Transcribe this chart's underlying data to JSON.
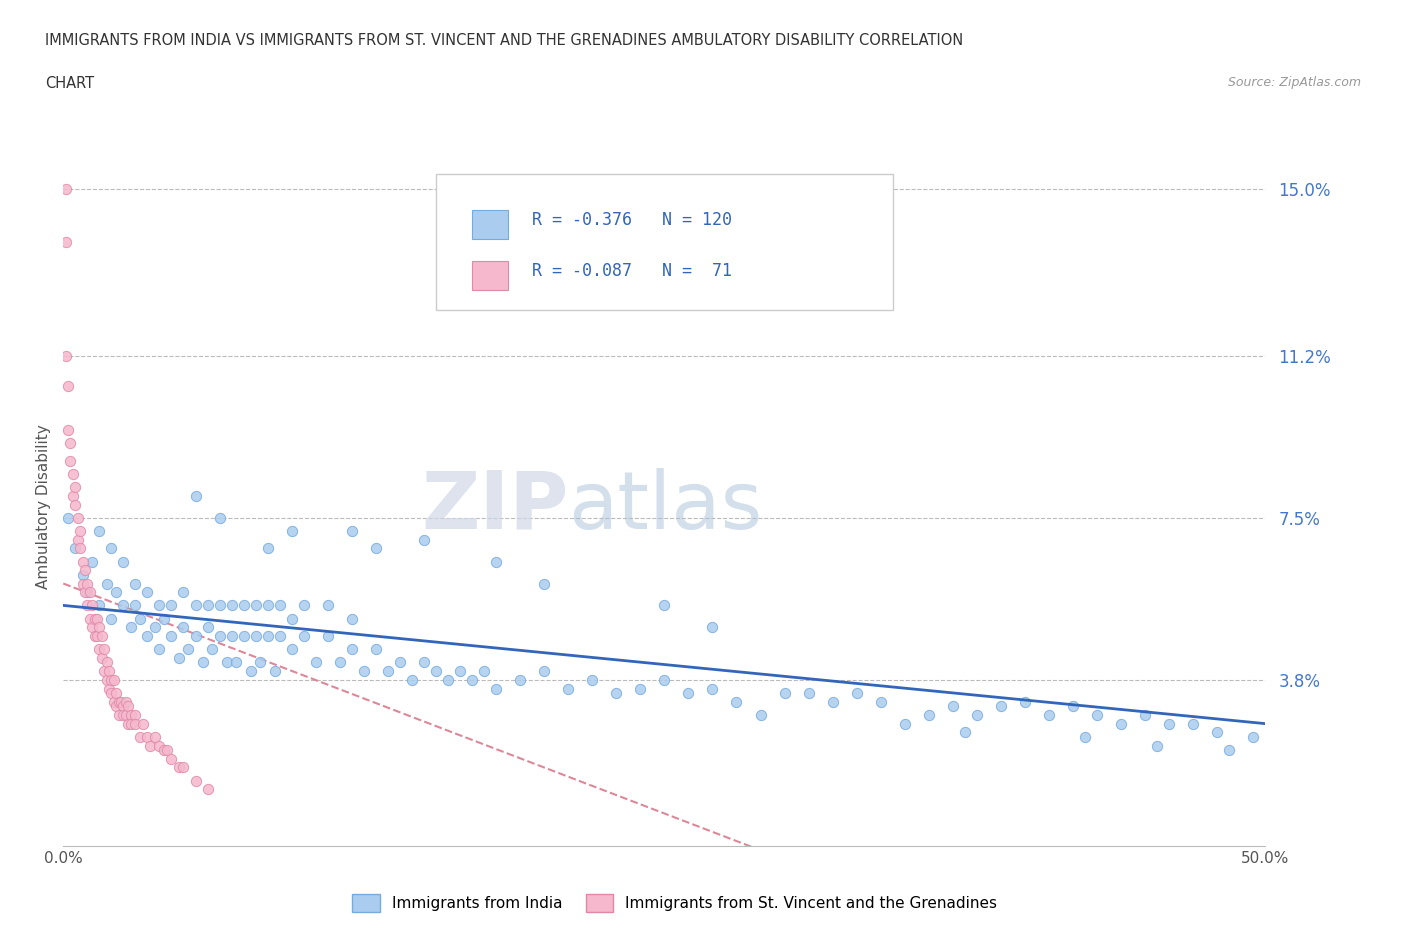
{
  "title_line1": "IMMIGRANTS FROM INDIA VS IMMIGRANTS FROM ST. VINCENT AND THE GRENADINES AMBULATORY DISABILITY CORRELATION",
  "title_line2": "CHART",
  "source": "Source: ZipAtlas.com",
  "ylabel": "Ambulatory Disability",
  "xlim": [
    0.0,
    0.5
  ],
  "ylim": [
    0.0,
    0.155
  ],
  "ytick_labels": [
    "15.0%",
    "11.2%",
    "7.5%",
    "3.8%"
  ],
  "ytick_values": [
    0.15,
    0.112,
    0.075,
    0.038
  ],
  "grid_color": "#bbbbbb",
  "background_color": "#ffffff",
  "india_color": "#aaccee",
  "india_edge_color": "#77aadd",
  "svg_color": "#f5b8cc",
  "svg_edge_color": "#e088a8",
  "india_line_color": "#3366bb",
  "svg_line_color": "#dd8899",
  "legend_label_india": "Immigrants from India",
  "legend_label_svg": "Immigrants from St. Vincent and the Grenadines",
  "watermark_zip": "ZIP",
  "watermark_atlas": "atlas",
  "india_scatter_x": [
    0.002,
    0.005,
    0.008,
    0.01,
    0.012,
    0.015,
    0.015,
    0.018,
    0.02,
    0.02,
    0.022,
    0.025,
    0.025,
    0.028,
    0.03,
    0.03,
    0.032,
    0.035,
    0.035,
    0.038,
    0.04,
    0.04,
    0.042,
    0.045,
    0.045,
    0.048,
    0.05,
    0.05,
    0.052,
    0.055,
    0.055,
    0.058,
    0.06,
    0.06,
    0.062,
    0.065,
    0.065,
    0.068,
    0.07,
    0.07,
    0.072,
    0.075,
    0.075,
    0.078,
    0.08,
    0.08,
    0.082,
    0.085,
    0.085,
    0.088,
    0.09,
    0.09,
    0.095,
    0.095,
    0.1,
    0.1,
    0.105,
    0.11,
    0.11,
    0.115,
    0.12,
    0.12,
    0.125,
    0.13,
    0.135,
    0.14,
    0.145,
    0.15,
    0.155,
    0.16,
    0.165,
    0.17,
    0.175,
    0.18,
    0.19,
    0.2,
    0.21,
    0.22,
    0.23,
    0.24,
    0.25,
    0.26,
    0.27,
    0.28,
    0.3,
    0.31,
    0.32,
    0.33,
    0.34,
    0.36,
    0.37,
    0.38,
    0.39,
    0.4,
    0.41,
    0.42,
    0.43,
    0.44,
    0.45,
    0.46,
    0.47,
    0.48,
    0.495,
    0.35,
    0.375,
    0.425,
    0.455,
    0.485,
    0.29,
    0.18,
    0.2,
    0.15,
    0.25,
    0.27,
    0.13,
    0.12,
    0.095,
    0.085,
    0.065,
    0.055
  ],
  "india_scatter_y": [
    0.075,
    0.068,
    0.062,
    0.058,
    0.065,
    0.055,
    0.072,
    0.06,
    0.052,
    0.068,
    0.058,
    0.055,
    0.065,
    0.05,
    0.06,
    0.055,
    0.052,
    0.048,
    0.058,
    0.05,
    0.055,
    0.045,
    0.052,
    0.048,
    0.055,
    0.043,
    0.05,
    0.058,
    0.045,
    0.048,
    0.055,
    0.042,
    0.05,
    0.055,
    0.045,
    0.048,
    0.055,
    0.042,
    0.048,
    0.055,
    0.042,
    0.048,
    0.055,
    0.04,
    0.048,
    0.055,
    0.042,
    0.048,
    0.055,
    0.04,
    0.048,
    0.055,
    0.045,
    0.052,
    0.048,
    0.055,
    0.042,
    0.048,
    0.055,
    0.042,
    0.045,
    0.052,
    0.04,
    0.045,
    0.04,
    0.042,
    0.038,
    0.042,
    0.04,
    0.038,
    0.04,
    0.038,
    0.04,
    0.036,
    0.038,
    0.04,
    0.036,
    0.038,
    0.035,
    0.036,
    0.038,
    0.035,
    0.036,
    0.033,
    0.035,
    0.035,
    0.033,
    0.035,
    0.033,
    0.03,
    0.032,
    0.03,
    0.032,
    0.033,
    0.03,
    0.032,
    0.03,
    0.028,
    0.03,
    0.028,
    0.028,
    0.026,
    0.025,
    0.028,
    0.026,
    0.025,
    0.023,
    0.022,
    0.03,
    0.065,
    0.06,
    0.07,
    0.055,
    0.05,
    0.068,
    0.072,
    0.072,
    0.068,
    0.075,
    0.08
  ],
  "svg_scatter_x": [
    0.001,
    0.001,
    0.002,
    0.002,
    0.003,
    0.003,
    0.004,
    0.004,
    0.005,
    0.005,
    0.006,
    0.006,
    0.007,
    0.007,
    0.008,
    0.008,
    0.009,
    0.009,
    0.01,
    0.01,
    0.011,
    0.011,
    0.012,
    0.012,
    0.013,
    0.013,
    0.014,
    0.014,
    0.015,
    0.015,
    0.016,
    0.016,
    0.017,
    0.017,
    0.018,
    0.018,
    0.019,
    0.019,
    0.02,
    0.02,
    0.021,
    0.021,
    0.022,
    0.022,
    0.023,
    0.023,
    0.024,
    0.025,
    0.025,
    0.026,
    0.026,
    0.027,
    0.027,
    0.028,
    0.028,
    0.03,
    0.03,
    0.032,
    0.033,
    0.035,
    0.036,
    0.038,
    0.04,
    0.042,
    0.043,
    0.045,
    0.048,
    0.05,
    0.055,
    0.06,
    0.001
  ],
  "svg_scatter_y": [
    0.138,
    0.112,
    0.095,
    0.105,
    0.092,
    0.088,
    0.085,
    0.08,
    0.082,
    0.078,
    0.075,
    0.07,
    0.068,
    0.072,
    0.065,
    0.06,
    0.063,
    0.058,
    0.06,
    0.055,
    0.058,
    0.052,
    0.055,
    0.05,
    0.052,
    0.048,
    0.048,
    0.052,
    0.05,
    0.045,
    0.048,
    0.043,
    0.045,
    0.04,
    0.042,
    0.038,
    0.04,
    0.036,
    0.038,
    0.035,
    0.038,
    0.033,
    0.035,
    0.032,
    0.033,
    0.03,
    0.033,
    0.032,
    0.03,
    0.033,
    0.03,
    0.032,
    0.028,
    0.03,
    0.028,
    0.03,
    0.028,
    0.025,
    0.028,
    0.025,
    0.023,
    0.025,
    0.023,
    0.022,
    0.022,
    0.02,
    0.018,
    0.018,
    0.015,
    0.013,
    0.15
  ]
}
